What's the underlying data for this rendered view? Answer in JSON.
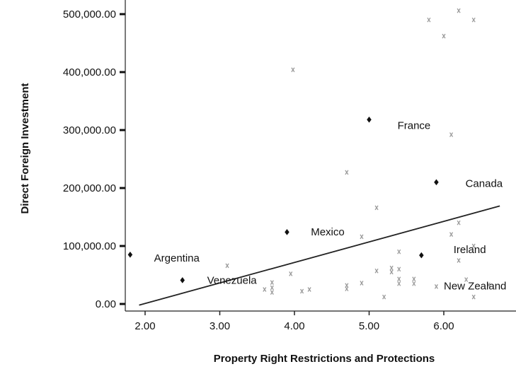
{
  "chart_data": {
    "type": "scatter",
    "title": "",
    "xlabel": "Property Right Restrictions and Protections",
    "ylabel": "Direct Foreign Investment",
    "xlim": [
      1.75,
      6.9
    ],
    "ylim": [
      0,
      510000
    ],
    "x_ticks": [
      {
        "value": 2,
        "label": "2.00"
      },
      {
        "value": 3,
        "label": "3.00"
      },
      {
        "value": 4,
        "label": "4.00"
      },
      {
        "value": 5,
        "label": "5.00"
      },
      {
        "value": 6,
        "label": "6.00"
      }
    ],
    "y_ticks": [
      {
        "value": 0,
        "label": "0.00"
      },
      {
        "value": 100000,
        "label": "100,000.00"
      },
      {
        "value": 200000,
        "label": "200,000.00"
      },
      {
        "value": 300000,
        "label": "300,000.00"
      },
      {
        "value": 400000,
        "label": "400,000.00"
      },
      {
        "value": 500000,
        "label": "500,000.00"
      }
    ],
    "grid": false,
    "highlighted_points": [
      {
        "x": 1.8,
        "y": 85000
      },
      {
        "x": 2.5,
        "y": 41000
      },
      {
        "x": 3.9,
        "y": 124000
      },
      {
        "x": 5.0,
        "y": 318000
      },
      {
        "x": 5.7,
        "y": 84000
      },
      {
        "x": 5.9,
        "y": 210000
      }
    ],
    "other_points": [
      [
        3.1,
        66000
      ],
      [
        3.6,
        25000
      ],
      [
        3.7,
        37000
      ],
      [
        3.7,
        28000
      ],
      [
        3.7,
        20000
      ],
      [
        3.95,
        52000
      ],
      [
        3.98,
        404000
      ],
      [
        4.1,
        22000
      ],
      [
        4.2,
        25000
      ],
      [
        4.7,
        227000
      ],
      [
        4.7,
        32000
      ],
      [
        4.7,
        26000
      ],
      [
        4.9,
        116000
      ],
      [
        4.9,
        36000
      ],
      [
        5.1,
        166000
      ],
      [
        5.1,
        57000
      ],
      [
        5.2,
        12000
      ],
      [
        5.3,
        62000
      ],
      [
        5.3,
        55000
      ],
      [
        5.4,
        90000
      ],
      [
        5.4,
        60000
      ],
      [
        5.4,
        43000
      ],
      [
        5.4,
        35000
      ],
      [
        5.6,
        43000
      ],
      [
        5.6,
        35000
      ],
      [
        5.8,
        490000
      ],
      [
        5.9,
        30000
      ],
      [
        6.0,
        462000
      ],
      [
        6.1,
        292000
      ],
      [
        6.1,
        120000
      ],
      [
        6.2,
        506000
      ],
      [
        6.2,
        140000
      ],
      [
        6.2,
        75000
      ],
      [
        6.3,
        42000
      ],
      [
        6.4,
        490000
      ],
      [
        6.4,
        100000
      ],
      [
        6.4,
        12000
      ],
      [
        6.6,
        33000
      ]
    ],
    "trend_line": {
      "x": [
        1.92,
        6.75
      ],
      "y": [
        -2000,
        169000
      ]
    },
    "annotations": [
      {
        "text": "France",
        "x": 5.38,
        "y": 302000
      },
      {
        "text": "Canada",
        "x": 6.29,
        "y": 202000
      },
      {
        "text": "Mexico",
        "x": 4.22,
        "y": 118000
      },
      {
        "text": "Ireland",
        "x": 6.13,
        "y": 88000
      },
      {
        "text": "Argentina",
        "x": 2.12,
        "y": 73000
      },
      {
        "text": "Venezuela",
        "x": 2.83,
        "y": 35000
      },
      {
        "text": "New Zealand",
        "x": 6.0,
        "y": 25000
      }
    ]
  }
}
